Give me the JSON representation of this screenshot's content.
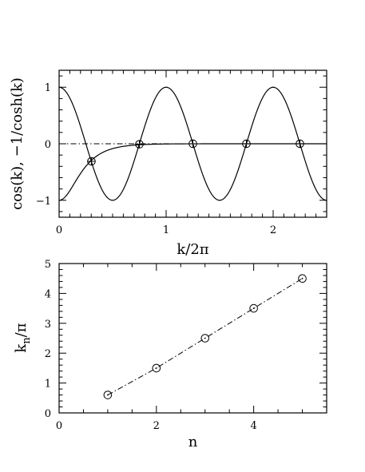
{
  "chart_data": [
    {
      "type": "line",
      "xlabel": "k/2π",
      "ylabel": "cos(k), −1/cosh(k)",
      "xlim": [
        0,
        2.5
      ],
      "ylim": [
        -1.3,
        1.3
      ],
      "xticks": [
        0,
        1,
        2
      ],
      "yticks": [
        -1,
        0,
        1
      ],
      "grid": false,
      "series": [
        {
          "function": "cos(k)",
          "x_units": "k/2π",
          "line": "solid"
        },
        {
          "function": "−1/cosh(k)",
          "x_units": "k/2π",
          "line": "solid"
        },
        {
          "function": "0",
          "line": "dash-dot"
        }
      ],
      "markers": {
        "style": "circle-cross",
        "x": [
          0.302,
          0.75,
          1.25,
          1.75,
          2.25
        ],
        "y": [
          -0.311,
          -0.009,
          0.0004,
          0.0,
          0.0
        ]
      }
    },
    {
      "type": "scatter",
      "xlabel": "n",
      "ylabel": "k_n/π",
      "xlim": [
        0,
        5.5
      ],
      "ylim": [
        0,
        5
      ],
      "xticks": [
        0,
        2,
        4
      ],
      "yticks": [
        0,
        1,
        2,
        3,
        4,
        5
      ],
      "grid": false,
      "series": [
        {
          "x": [
            1,
            2,
            3,
            4,
            5
          ],
          "y": [
            0.6,
            1.5,
            2.5,
            3.5,
            4.5
          ],
          "line": "dash-dot",
          "marker": "circle-dot"
        }
      ]
    }
  ]
}
